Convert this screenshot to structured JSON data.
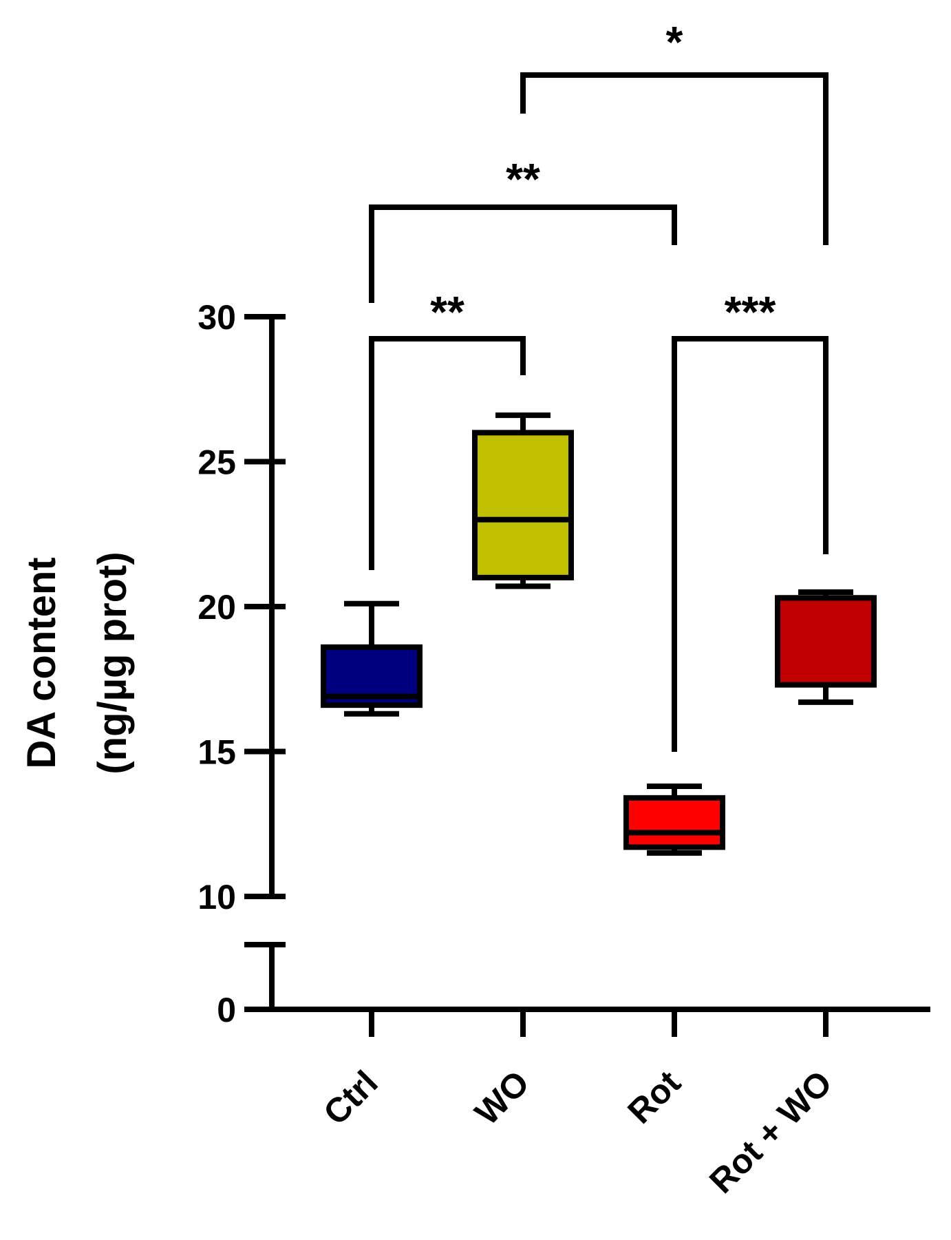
{
  "chart_data": {
    "type": "box",
    "title": "",
    "ylabel_line1": "DA content",
    "ylabel_line2": "(ng/µg prot)",
    "xlabel": "",
    "categories": [
      "Ctrl",
      "WO",
      "Rot",
      "Rot + WO"
    ],
    "yticks_upper": [
      10,
      15,
      20,
      25,
      30
    ],
    "yticks_lower": [
      0
    ],
    "ylim_upper": [
      10,
      30
    ],
    "ylim_lower": [
      0,
      2
    ],
    "axis_break": true,
    "grid": false,
    "legend": "none",
    "boxes": [
      {
        "category": "Ctrl",
        "min": 16.3,
        "q1": 16.6,
        "median": 16.9,
        "q3": 18.6,
        "max": 20.1,
        "color": "#00007f"
      },
      {
        "category": "WO",
        "min": 20.7,
        "q1": 21.0,
        "median": 23.0,
        "q3": 26.0,
        "max": 26.6,
        "color": "#c0c000"
      },
      {
        "category": "Rot",
        "min": 11.5,
        "q1": 11.7,
        "median": 12.2,
        "q3": 13.4,
        "max": 13.8,
        "color": "#ff0000"
      },
      {
        "category": "Rot + WO",
        "min": 16.7,
        "q1": 17.3,
        "median": 20.3,
        "q3": 20.3,
        "max": 20.5,
        "color": "#c00000"
      }
    ],
    "significance": [
      {
        "from": "Ctrl",
        "to": "WO",
        "label": "**"
      },
      {
        "from": "Rot",
        "to": "Rot + WO",
        "label": "***"
      },
      {
        "from": "Ctrl",
        "to": "Rot",
        "label": "**"
      },
      {
        "from": "WO",
        "to": "Rot + WO",
        "label": "*"
      }
    ]
  }
}
